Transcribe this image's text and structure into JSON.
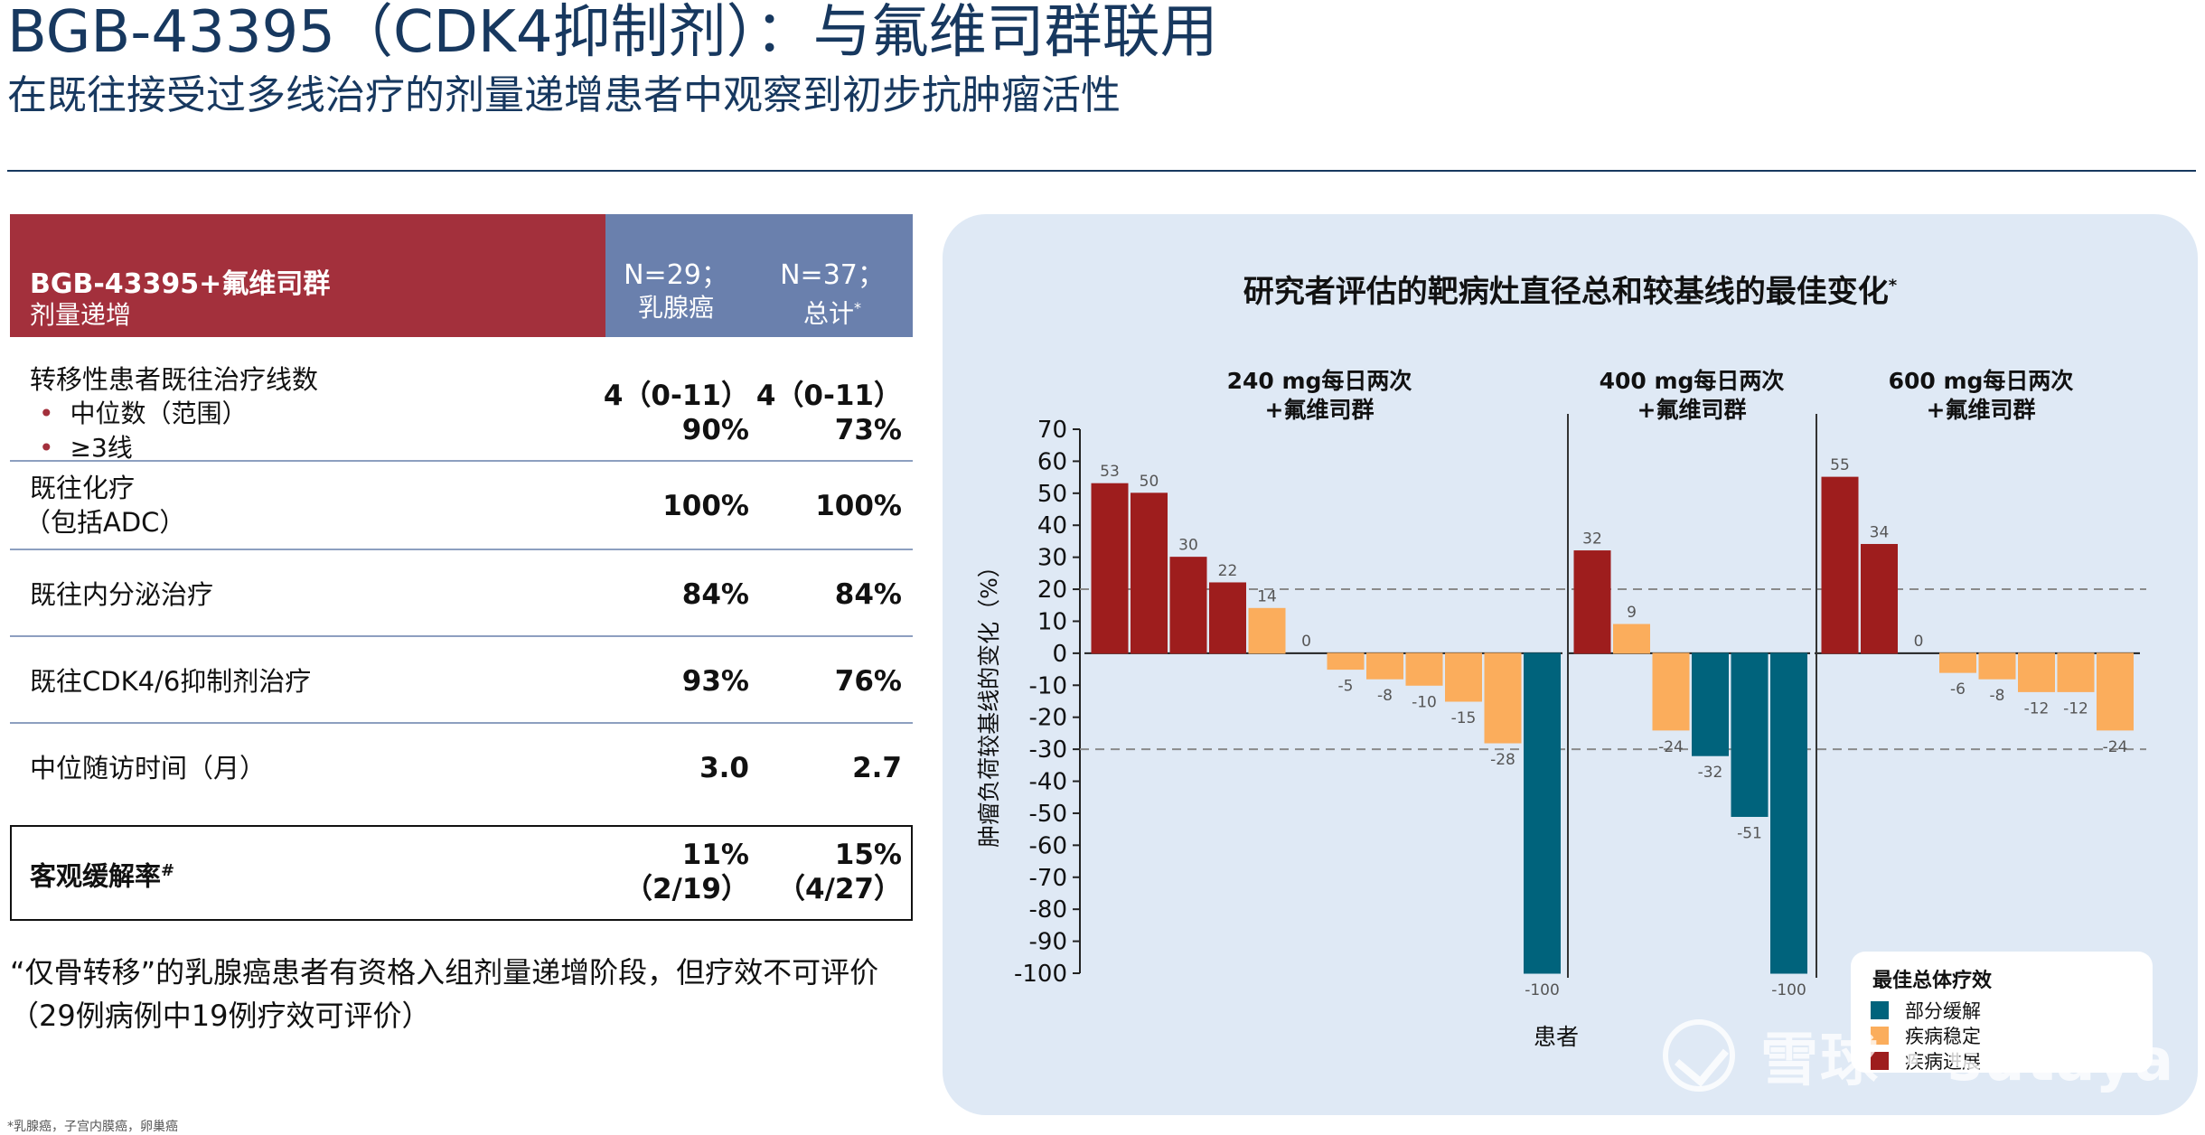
{
  "header": {
    "title": "BGB-43395（CDK4抑制剂）：与氟维司群联用",
    "subtitle": "在既往接受过多线治疗的剂量递增患者中观察到初步抗肿瘤活性"
  },
  "table": {
    "header": {
      "title": "BGB-43395+氟维司群",
      "subtitle": "剂量递增",
      "col1_n": "N=29；",
      "col1_label": "乳腺癌",
      "col2_n": "N=37；",
      "col2_label": "总计",
      "col2_mark": "*"
    },
    "rows": [
      {
        "label": "转移性患者既往治疗线数",
        "bullets": [
          "中位数（范围）",
          "≥3线"
        ],
        "col1": [
          "4（0-11）",
          "90%"
        ],
        "col2": [
          "4（0-11）",
          "73%"
        ]
      },
      {
        "label": "既往化疗",
        "label2": "（包括ADC）",
        "col1": [
          "100%"
        ],
        "col2": [
          "100%"
        ]
      },
      {
        "label": "既往内分泌治疗",
        "col1": [
          "84%"
        ],
        "col2": [
          "84%"
        ]
      },
      {
        "label": "既往CDK4/6抑制剂治疗",
        "col1": [
          "93%"
        ],
        "col2": [
          "76%"
        ]
      },
      {
        "label": "中位随访时间（月）",
        "col1": [
          "3.0"
        ],
        "col2": [
          "2.7"
        ]
      },
      {
        "label": "客观缓解率",
        "label_mark": "#",
        "col1": [
          "11%",
          "（2/19）"
        ],
        "col2": [
          "15%",
          "（4/27）"
        ]
      }
    ]
  },
  "note": "“仅骨转移”的乳腺癌患者有资格入组剂量递增阶段，但疗效不可评价 （29例病例中19例疗效可评价）",
  "footnote": "*乳腺癌，子宫内膜癌，卵巢癌",
  "watermark": "雪球 · sutaya",
  "chart_data": {
    "type": "bar",
    "title": "研究者评估的靶病灶直径总和较基线的最佳变化",
    "title_mark": "*",
    "xlabel": "患者",
    "ylabel": "肿瘤负荷较基线的变化（%）",
    "ylim": [
      -100,
      70
    ],
    "yticks": [
      70,
      60,
      50,
      40,
      30,
      20,
      10,
      0,
      -10,
      -20,
      -30,
      -40,
      -50,
      -60,
      -70,
      -80,
      -90,
      -100
    ],
    "reference_lines": [
      20,
      -30
    ],
    "colors": {
      "PR": "#00637c",
      "SD": "#fbad5c",
      "PD": "#9e1d1d"
    },
    "legend": {
      "title": "最佳总体疗效",
      "placement": "bottom-right",
      "items": [
        {
          "key": "PR",
          "label": "部分缓解"
        },
        {
          "key": "SD",
          "label": "疾病稳定"
        },
        {
          "key": "PD",
          "label": "疾病进展"
        }
      ]
    },
    "groups": [
      {
        "label_line1": "240 mg每日两次",
        "label_line2": "+氟维司群",
        "values": [
          53,
          50,
          30,
          22,
          14,
          0,
          -5,
          -8,
          -10,
          -15,
          -28,
          -100
        ],
        "responses": [
          "PD",
          "PD",
          "PD",
          "PD",
          "SD",
          "SD",
          "SD",
          "SD",
          "SD",
          "SD",
          "SD",
          "PR"
        ]
      },
      {
        "label_line1": "400 mg每日两次",
        "label_line2": "+氟维司群",
        "values": [
          32,
          9,
          -24,
          -32,
          -51,
          -100
        ],
        "responses": [
          "PD",
          "SD",
          "SD",
          "PR",
          "PR",
          "PR"
        ]
      },
      {
        "label_line1": "600 mg每日两次",
        "label_line2": "+氟维司群",
        "values": [
          55,
          34,
          0,
          -6,
          -8,
          -12,
          -12,
          -24
        ],
        "responses": [
          "PD",
          "PD",
          "SD",
          "SD",
          "SD",
          "SD",
          "SD",
          "SD"
        ]
      }
    ]
  }
}
